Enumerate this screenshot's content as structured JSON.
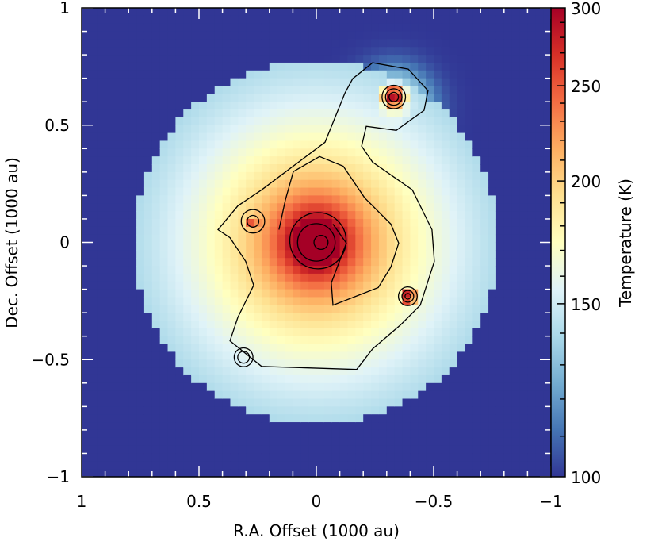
{
  "chart_data": {
    "type": "heatmap",
    "xlabel": "R.A. Offset (1000 au)",
    "ylabel": "Dec. Offset (1000 au)",
    "xlim": [
      1,
      -1
    ],
    "ylim": [
      -1,
      1
    ],
    "x_reversed": true,
    "xticks": [
      1,
      0.5,
      0,
      -0.5,
      -1
    ],
    "xtick_labels": [
      "1",
      "0.5",
      "0",
      "−0.5",
      "−1"
    ],
    "yticks": [
      1,
      0.5,
      0,
      -0.5,
      -1
    ],
    "ytick_labels": [
      "1",
      "0.5",
      "0",
      "−0.5",
      "−1"
    ],
    "grid": false,
    "colorbar": {
      "label": "Temperature (K)",
      "range": [
        100,
        300
      ],
      "scale": "log",
      "ticks": [
        100,
        150,
        200,
        250,
        300
      ],
      "tick_labels": [
        "100",
        "150",
        "200",
        "250",
        "300"
      ],
      "colormap": "RdYlBu_r",
      "colors": [
        "#313695",
        "#4575b4",
        "#74add1",
        "#abd9e9",
        "#e0f3f8",
        "#ffffbf",
        "#fee090",
        "#fdae61",
        "#f46d43",
        "#d73027",
        "#a50026"
      ],
      "position": "right"
    },
    "temperature_field": {
      "background_K": 100,
      "disk_radius": 0.78,
      "center_peak_K": 300,
      "center_core_radius": 0.1,
      "radial_index": 0.37,
      "hot_spots": [
        {
          "x": -0.33,
          "y": 0.62,
          "peak_K": 300,
          "sigma": 0.04
        },
        {
          "x": -0.33,
          "y": 0.58,
          "peak_K": 170,
          "sigma": 0.1
        },
        {
          "x": -0.39,
          "y": -0.23,
          "peak_K": 300,
          "sigma": 0.03
        },
        {
          "x": 0.27,
          "y": 0.09,
          "peak_K": 280,
          "sigma": 0.025
        }
      ]
    },
    "contours": {
      "polylines": [
        [
          [
            -0.122,
            0.637
          ],
          [
            -0.037,
            0.427
          ],
          [
            0.233,
            0.224
          ],
          [
            0.334,
            0.156
          ],
          [
            0.419,
            0.054
          ],
          [
            0.368,
            0.02
          ],
          [
            0.301,
            -0.081
          ],
          [
            0.267,
            -0.183
          ],
          [
            0.334,
            -0.319
          ],
          [
            0.368,
            -0.42
          ],
          [
            0.233,
            -0.529
          ],
          [
            -0.172,
            -0.542
          ],
          [
            -0.24,
            -0.454
          ],
          [
            -0.358,
            -0.353
          ],
          [
            -0.443,
            -0.268
          ],
          [
            -0.503,
            -0.081
          ],
          [
            -0.493,
            0.054
          ],
          [
            -0.409,
            0.224
          ],
          [
            -0.24,
            0.342
          ],
          [
            -0.193,
            0.41
          ],
          [
            -0.213,
            0.495
          ],
          [
            -0.341,
            0.478
          ],
          [
            -0.459,
            0.563
          ],
          [
            -0.476,
            0.647
          ],
          [
            -0.392,
            0.739
          ],
          [
            -0.24,
            0.766
          ],
          [
            -0.155,
            0.698
          ],
          [
            -0.122,
            0.637
          ]
        ],
        [
          [
            0.159,
            0.054
          ],
          [
            0.132,
            0.18
          ],
          [
            0.098,
            0.302
          ],
          [
            -0.014,
            0.366
          ],
          [
            -0.115,
            0.325
          ],
          [
            -0.206,
            0.19
          ],
          [
            -0.318,
            0.078
          ],
          [
            -0.351,
            -0.003
          ],
          [
            -0.318,
            -0.105
          ],
          [
            -0.264,
            -0.193
          ],
          [
            -0.071,
            -0.268
          ],
          [
            -0.064,
            -0.173
          ],
          [
            -0.128,
            -0.003
          ],
          [
            -0.071,
            0.078
          ]
        ]
      ],
      "circles": [
        {
          "center": [
            -0.007,
            0.007
          ],
          "radius": 0.12
        },
        {
          "center": [
            0.0,
            0.0
          ],
          "radius": 0.08
        },
        {
          "center": [
            -0.02,
            0.0
          ],
          "radius": 0.03
        },
        {
          "center": [
            -0.33,
            0.62
          ],
          "radius": 0.05
        },
        {
          "center": [
            -0.33,
            0.62
          ],
          "radius": 0.035
        },
        {
          "center": [
            -0.33,
            0.62
          ],
          "radius": 0.02
        },
        {
          "center": [
            -0.39,
            -0.23
          ],
          "radius": 0.04
        },
        {
          "center": [
            -0.39,
            -0.23
          ],
          "radius": 0.025
        },
        {
          "center": [
            -0.39,
            -0.23
          ],
          "radius": 0.012
        },
        {
          "center": [
            0.27,
            0.09
          ],
          "radius": 0.05
        },
        {
          "center": [
            0.27,
            0.09
          ],
          "radius": 0.025
        },
        {
          "center": [
            0.31,
            -0.49
          ],
          "radius": 0.04
        },
        {
          "center": [
            0.31,
            -0.49
          ],
          "radius": 0.025
        }
      ]
    }
  }
}
